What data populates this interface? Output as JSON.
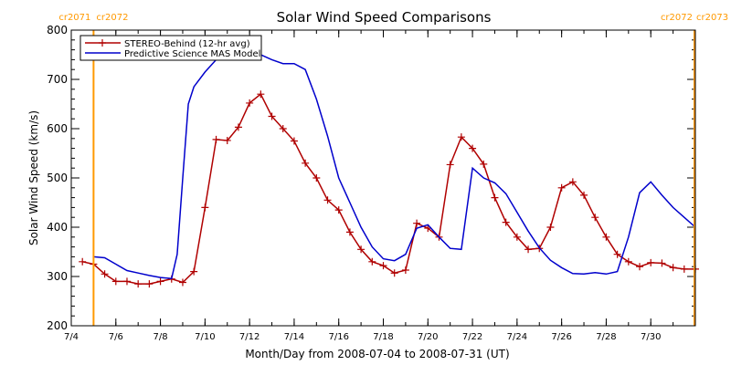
{
  "chart_data": {
    "type": "line",
    "title": "Solar Wind Speed Comparisons",
    "xlabel": "Month/Day from 2008-07-04 to 2008-07-31 (UT)",
    "ylabel": "Solar Wind Speed (km/s)",
    "xlim": [
      "2008-07-04",
      "2008-08-01"
    ],
    "ylim": [
      200,
      800
    ],
    "x_ticks": [
      "7/4",
      "7/6",
      "7/8",
      "7/10",
      "7/12",
      "7/14",
      "7/16",
      "7/18",
      "7/20",
      "7/22",
      "7/24",
      "7/26",
      "7/28",
      "7/30"
    ],
    "x_tick_values": [
      "2008-07-04",
      "2008-07-06",
      "2008-07-08",
      "2008-07-10",
      "2008-07-12",
      "2008-07-14",
      "2008-07-16",
      "2008-07-18",
      "2008-07-20",
      "2008-07-22",
      "2008-07-24",
      "2008-07-26",
      "2008-07-28",
      "2008-07-30"
    ],
    "y_ticks": [
      200,
      300,
      400,
      500,
      600,
      700,
      800
    ],
    "legend_position": "top-left",
    "carrington_markers": [
      {
        "x": "2008-07-05 00:00",
        "left_label": "cr2071",
        "right_label": "cr2072",
        "color": "#ff9900"
      },
      {
        "x": "2008-08-01 00:00",
        "left_label": "cr2072",
        "right_label": "cr2073",
        "color": "#ff9900"
      }
    ],
    "series": [
      {
        "name": "STEREO-Behind (12-hr avg)",
        "color": "#b00000",
        "marker": "plus",
        "x": [
          "2008-07-04 12:00",
          "2008-07-05 00:00",
          "2008-07-05 12:00",
          "2008-07-06 00:00",
          "2008-07-06 12:00",
          "2008-07-07 00:00",
          "2008-07-07 12:00",
          "2008-07-08 00:00",
          "2008-07-08 12:00",
          "2008-07-09 00:00",
          "2008-07-09 12:00",
          "2008-07-10 00:00",
          "2008-07-10 12:00",
          "2008-07-11 00:00",
          "2008-07-11 12:00",
          "2008-07-12 00:00",
          "2008-07-12 12:00",
          "2008-07-13 00:00",
          "2008-07-13 12:00",
          "2008-07-14 00:00",
          "2008-07-14 12:00",
          "2008-07-15 00:00",
          "2008-07-15 12:00",
          "2008-07-16 00:00",
          "2008-07-16 12:00",
          "2008-07-17 00:00",
          "2008-07-17 12:00",
          "2008-07-18 00:00",
          "2008-07-18 12:00",
          "2008-07-19 00:00",
          "2008-07-19 12:00",
          "2008-07-20 00:00",
          "2008-07-20 12:00",
          "2008-07-21 00:00",
          "2008-07-21 12:00",
          "2008-07-22 00:00",
          "2008-07-22 12:00",
          "2008-07-23 00:00",
          "2008-07-23 12:00",
          "2008-07-24 00:00",
          "2008-07-24 12:00",
          "2008-07-25 00:00",
          "2008-07-25 12:00",
          "2008-07-26 00:00",
          "2008-07-26 12:00",
          "2008-07-27 00:00",
          "2008-07-27 12:00",
          "2008-07-28 00:00",
          "2008-07-28 12:00",
          "2008-07-29 00:00",
          "2008-07-29 12:00",
          "2008-07-30 00:00",
          "2008-07-30 12:00",
          "2008-07-31 00:00",
          "2008-07-31 12:00",
          "2008-08-01 00:00"
        ],
        "y": [
          330,
          325,
          305,
          290,
          290,
          285,
          285,
          290,
          295,
          288,
          310,
          440,
          578,
          576,
          603,
          652,
          670,
          625,
          600,
          575,
          530,
          500,
          455,
          435,
          390,
          355,
          330,
          322,
          307,
          313,
          408,
          398,
          380,
          527,
          583,
          560,
          528,
          460,
          410,
          380,
          355,
          357,
          400,
          480,
          492,
          465,
          420,
          380,
          345,
          330,
          320,
          328,
          327,
          318,
          315,
          315
        ]
      },
      {
        "name": "Predictive Science MAS Model",
        "color": "#0000cc",
        "marker": "none",
        "x": [
          "2008-07-05 00:00",
          "2008-07-05 12:00",
          "2008-07-06 00:00",
          "2008-07-06 12:00",
          "2008-07-07 00:00",
          "2008-07-07 12:00",
          "2008-07-08 00:00",
          "2008-07-08 12:00",
          "2008-07-08 18:00",
          "2008-07-09 00:00",
          "2008-07-09 06:00",
          "2008-07-09 12:00",
          "2008-07-10 00:00",
          "2008-07-10 12:00",
          "2008-07-11 00:00",
          "2008-07-11 12:00",
          "2008-07-12 00:00",
          "2008-07-12 12:00",
          "2008-07-13 00:00",
          "2008-07-13 12:00",
          "2008-07-14 00:00",
          "2008-07-14 12:00",
          "2008-07-15 00:00",
          "2008-07-15 12:00",
          "2008-07-16 00:00",
          "2008-07-16 12:00",
          "2008-07-17 00:00",
          "2008-07-17 12:00",
          "2008-07-18 00:00",
          "2008-07-18 12:00",
          "2008-07-19 00:00",
          "2008-07-19 12:00",
          "2008-07-20 00:00",
          "2008-07-20 12:00",
          "2008-07-21 00:00",
          "2008-07-21 12:00",
          "2008-07-22 00:00",
          "2008-07-22 12:00",
          "2008-07-23 00:00",
          "2008-07-23 12:00",
          "2008-07-24 00:00",
          "2008-07-24 12:00",
          "2008-07-25 00:00",
          "2008-07-25 12:00",
          "2008-07-26 00:00",
          "2008-07-26 12:00",
          "2008-07-27 00:00",
          "2008-07-27 12:00",
          "2008-07-28 00:00",
          "2008-07-28 12:00",
          "2008-07-29 00:00",
          "2008-07-29 12:00",
          "2008-07-30 00:00",
          "2008-07-30 12:00",
          "2008-07-31 00:00",
          "2008-07-31 12:00",
          "2008-08-01 00:00"
        ],
        "y": [
          340,
          338,
          325,
          312,
          307,
          302,
          298,
          296,
          345,
          500,
          650,
          685,
          715,
          740,
          760,
          760,
          755,
          750,
          740,
          732,
          732,
          720,
          660,
          585,
          500,
          450,
          400,
          360,
          336,
          332,
          345,
          398,
          405,
          380,
          357,
          355,
          520,
          500,
          490,
          468,
          430,
          392,
          358,
          333,
          318,
          306,
          305,
          308,
          305,
          310,
          380,
          470,
          492,
          465,
          440,
          420,
          400
        ]
      }
    ]
  }
}
